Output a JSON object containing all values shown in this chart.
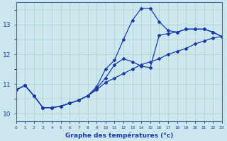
{
  "xlabel": "Graphe des températures (°c)",
  "background_color": "#cce8ee",
  "grid_color": "#aacccc",
  "line_color": "#1a3aaa",
  "x_hours": [
    0,
    1,
    2,
    3,
    4,
    5,
    6,
    7,
    8,
    9,
    10,
    11,
    12,
    13,
    14,
    15,
    16,
    17,
    18,
    19,
    20,
    21,
    22,
    23
  ],
  "y_line1": [
    10.8,
    10.95,
    10.6,
    10.2,
    10.2,
    10.25,
    10.35,
    10.45,
    10.6,
    10.8,
    11.05,
    11.2,
    11.35,
    11.5,
    11.65,
    11.75,
    11.85,
    12.0,
    12.1,
    12.2,
    12.35,
    12.45,
    12.55,
    12.6
  ],
  "y_line2": [
    10.8,
    10.95,
    10.6,
    10.2,
    10.2,
    10.25,
    10.35,
    10.45,
    10.6,
    10.85,
    11.2,
    11.65,
    11.85,
    11.75,
    11.6,
    11.55,
    12.65,
    12.7,
    12.75,
    12.85,
    12.85,
    12.85,
    12.75,
    12.6
  ],
  "y_line3": [
    10.8,
    10.95,
    10.6,
    10.2,
    10.2,
    10.25,
    10.35,
    10.45,
    10.6,
    10.9,
    11.5,
    11.8,
    12.5,
    13.15,
    13.55,
    13.55,
    13.1,
    12.8,
    12.75,
    12.85,
    12.85,
    12.85,
    12.75,
    12.6
  ],
  "ylim": [
    9.75,
    13.75
  ],
  "yticks": [
    10,
    11,
    12,
    13
  ],
  "xlim": [
    0,
    23
  ]
}
